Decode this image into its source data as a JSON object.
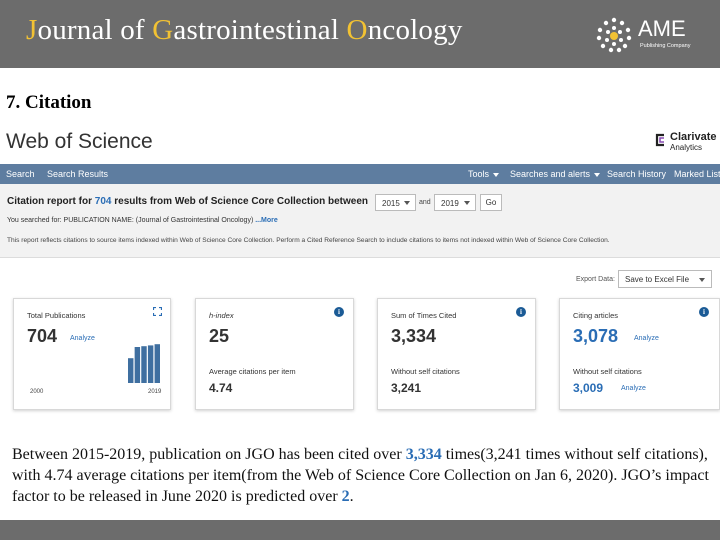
{
  "banner": {
    "title_parts": [
      {
        "cap": "J",
        "rest": "ournal of "
      },
      {
        "cap": "G",
        "rest": "astrointestinal "
      },
      {
        "cap": "O",
        "rest": "ncology"
      }
    ],
    "logo_text": "AME",
    "logo_sub": "Publishing Company",
    "accent_color": "#f2c233",
    "background_color": "#6c6c6c"
  },
  "section_title": "7. Citation",
  "wos": {
    "title": "Web of Science",
    "brand_name": "Clarivate",
    "brand_sub": "Analytics"
  },
  "nav": {
    "left": [
      "Search",
      "Search Results"
    ],
    "right": [
      "Tools",
      "Searches and alerts",
      "Search History",
      "Marked List"
    ]
  },
  "report": {
    "prefix": "Citation report for ",
    "count": "704",
    "suffix": " results from Web of Science Core Collection  between",
    "from_year": "2015",
    "and_label": "and",
    "to_year": "2019",
    "go_label": "Go",
    "searched_for": "You searched for: PUBLICATION NAME: (Journal of Gastrointestinal Oncology) ",
    "more_label": "...More",
    "reflects_note": "This report reflects citations to source items indexed within Web of Science Core Collection. Perform a Cited Reference Search to include citations to items not indexed within Web of Science Core Collection."
  },
  "export": {
    "label": "Export Data:",
    "selected": "Save to Excel File"
  },
  "cards": {
    "total_publications": {
      "label": "Total Publications",
      "value": "704",
      "analyze": "Analyze",
      "year_start": "2000",
      "year_end": "2019",
      "bar_values": [
        0,
        0,
        0,
        0,
        0,
        0,
        0,
        0,
        0,
        0,
        0,
        0,
        0,
        0,
        0,
        0.62,
        0.9,
        0.92,
        0.94,
        0.97
      ]
    },
    "h_index": {
      "label": "h-index",
      "value": "25",
      "sub_label": "Average citations per item",
      "sub_value": "4.74"
    },
    "times_cited": {
      "label": "Sum of Times Cited",
      "value": "3,334",
      "sub_label": "Without self citations",
      "sub_value": "3,241"
    },
    "citing_articles": {
      "label": "Citing articles",
      "value": "3,078",
      "analyze": "Analyze",
      "sub_label": "Without self citations",
      "sub_value": "3,009",
      "sub_analyze": "Analyze"
    }
  },
  "summary": {
    "t1": "Between 2015-2019, publication on JGO has been cited over ",
    "h1": "3,334",
    "t2": " times(3,241 times without self citations), with 4.74 average citations per item(from the Web of Science Core Collection on Jan 6, 2020). JGO’s impact factor to be released in June 2020 is predicted over ",
    "h2": "2",
    "t3": "."
  },
  "colors": {
    "nav_bar": "#5e7da0",
    "link_blue": "#2a6db5",
    "info_icon": "#1b5b96",
    "chart_bar": "#3f6fa0"
  }
}
